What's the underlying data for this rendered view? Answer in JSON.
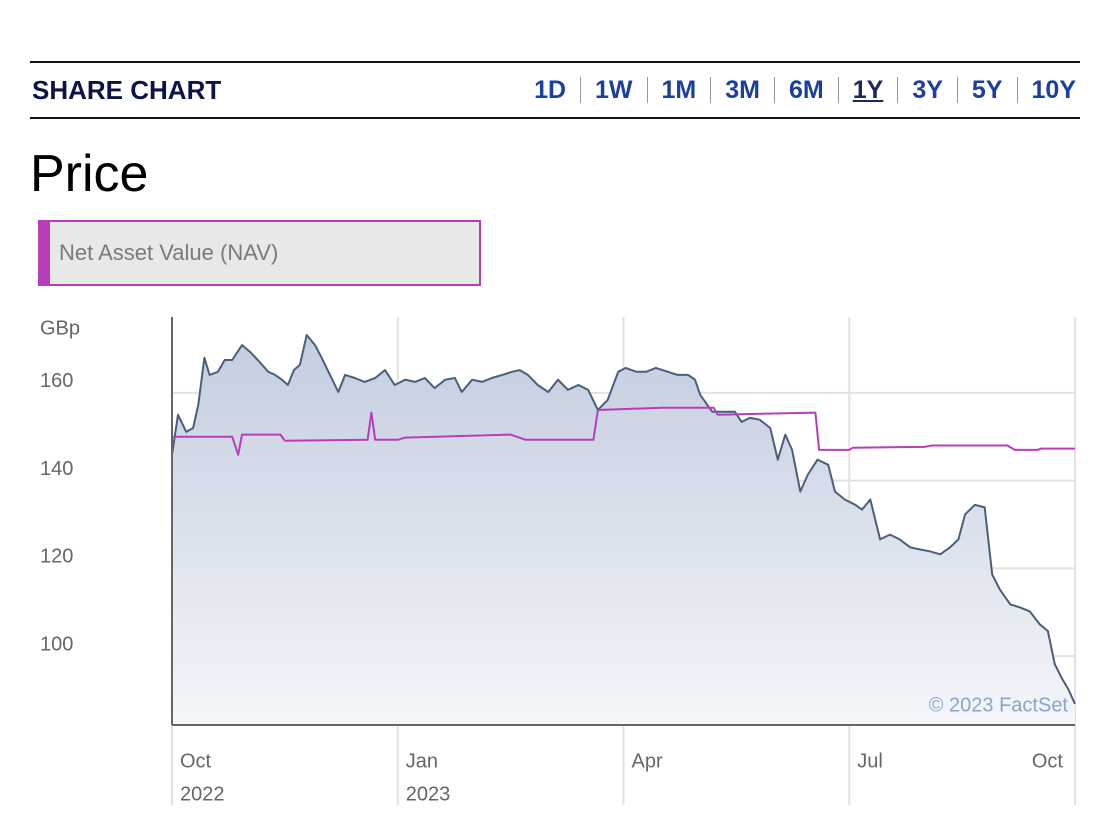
{
  "header": {
    "title": "SHARE CHART",
    "tabs": [
      "1D",
      "1W",
      "1M",
      "3M",
      "6M",
      "1Y",
      "3Y",
      "5Y",
      "10Y"
    ],
    "selected": "1Y"
  },
  "chart_data": {
    "type": "line",
    "title": "Price",
    "y_label": "GBp",
    "annotation": "© 2023 FactSet",
    "ylim": [
      84.3,
      177.3
    ],
    "yticks": [
      100,
      120,
      140,
      160
    ],
    "grid": true,
    "xlim": [
      0,
      12
    ],
    "xticks": [
      {
        "value": 0,
        "label": "Oct"
      },
      {
        "value": 3,
        "label": "Jan"
      },
      {
        "value": 6,
        "label": "Apr"
      },
      {
        "value": 9,
        "label": "Jul"
      },
      {
        "value": 12,
        "label": "Oct"
      }
    ],
    "xtick_years": [
      {
        "value": 0,
        "label": "2022"
      },
      {
        "value": 3,
        "label": "2023"
      }
    ],
    "series": [
      {
        "color": "#4a5f7a",
        "fill": true,
        "x": [
          0,
          0.08,
          0.19,
          0.28,
          0.35,
          0.43,
          0.5,
          0.61,
          0.7,
          0.8,
          0.93,
          1.04,
          1.14,
          1.28,
          1.37,
          1.46,
          1.54,
          1.62,
          1.7,
          1.79,
          1.9,
          1.99,
          2.1,
          2.21,
          2.3,
          2.43,
          2.56,
          2.7,
          2.83,
          2.96,
          3.1,
          3.23,
          3.36,
          3.49,
          3.63,
          3.76,
          3.85,
          3.99,
          4.12,
          4.25,
          4.39,
          4.52,
          4.62,
          4.73,
          4.86,
          5.0,
          5.13,
          5.26,
          5.4,
          5.53,
          5.66,
          5.79,
          5.93,
          6.03,
          6.17,
          6.3,
          6.43,
          6.59,
          6.72,
          6.86,
          6.95,
          7.02,
          7.18,
          7.31,
          7.48,
          7.57,
          7.68,
          7.81,
          7.95,
          8.05,
          8.15,
          8.24,
          8.35,
          8.45,
          8.58,
          8.72,
          8.81,
          8.94,
          9.08,
          9.17,
          9.28,
          9.41,
          9.54,
          9.67,
          9.81,
          9.94,
          10.07,
          10.21,
          10.34,
          10.45,
          10.54,
          10.67,
          10.8,
          10.9,
          11.0,
          11.14,
          11.27,
          11.4,
          11.53,
          11.64,
          11.73,
          11.83,
          11.91,
          12
        ],
        "values": [
          145.9,
          155,
          151.1,
          152,
          157.3,
          168,
          164.1,
          164.8,
          167.5,
          167.5,
          170.9,
          169.3,
          167.5,
          164.8,
          164.1,
          163,
          161.8,
          165.2,
          166.4,
          173.2,
          170.9,
          168,
          164.1,
          160.2,
          164.1,
          163.4,
          162.5,
          163.4,
          165.2,
          161.8,
          163,
          162.5,
          163.4,
          161.1,
          163,
          163.4,
          160.2,
          163,
          162.5,
          163.4,
          164.1,
          164.8,
          165.2,
          164.1,
          161.8,
          160.2,
          163,
          160.7,
          161.8,
          160.7,
          156.1,
          158.4,
          164.8,
          165.7,
          164.8,
          164.8,
          165.7,
          164.8,
          164.1,
          164.1,
          163,
          159.5,
          155.7,
          155.7,
          155.7,
          153.4,
          154.3,
          153.9,
          152,
          144.8,
          150.5,
          147,
          137.5,
          141.4,
          144.8,
          143.6,
          137.5,
          135.7,
          134.5,
          133.4,
          135.7,
          126.6,
          127.7,
          126.6,
          124.8,
          124.3,
          123.9,
          123.2,
          124.8,
          126.6,
          132.3,
          134.5,
          133.9,
          118.6,
          115.2,
          111.8,
          111.1,
          110.2,
          107.3,
          105.7,
          98.2,
          94.8,
          92.5,
          89.1
        ]
      },
      {
        "name": "Net Asset Value (NAV)",
        "color": "#b83dba",
        "x": [
          0,
          0.8,
          0.88,
          0.93,
          1.44,
          1.5,
          2.6,
          2.65,
          2.7,
          3.0,
          3.1,
          4.5,
          4.7,
          5.6,
          5.66,
          6.5,
          7.2,
          7.25,
          8.55,
          8.6,
          9.0,
          9.05,
          10.0,
          10.1,
          11.1,
          11.2,
          11.5,
          11.55,
          12
        ],
        "values": [
          150,
          150,
          145.9,
          150.5,
          150.5,
          149.1,
          149.3,
          155.5,
          149.3,
          149.3,
          149.8,
          150.5,
          149.3,
          149.3,
          156.1,
          156.6,
          156.6,
          155,
          155.5,
          147,
          147,
          147.5,
          147.7,
          148,
          148,
          147,
          147,
          147.3,
          147.3
        ]
      }
    ]
  }
}
